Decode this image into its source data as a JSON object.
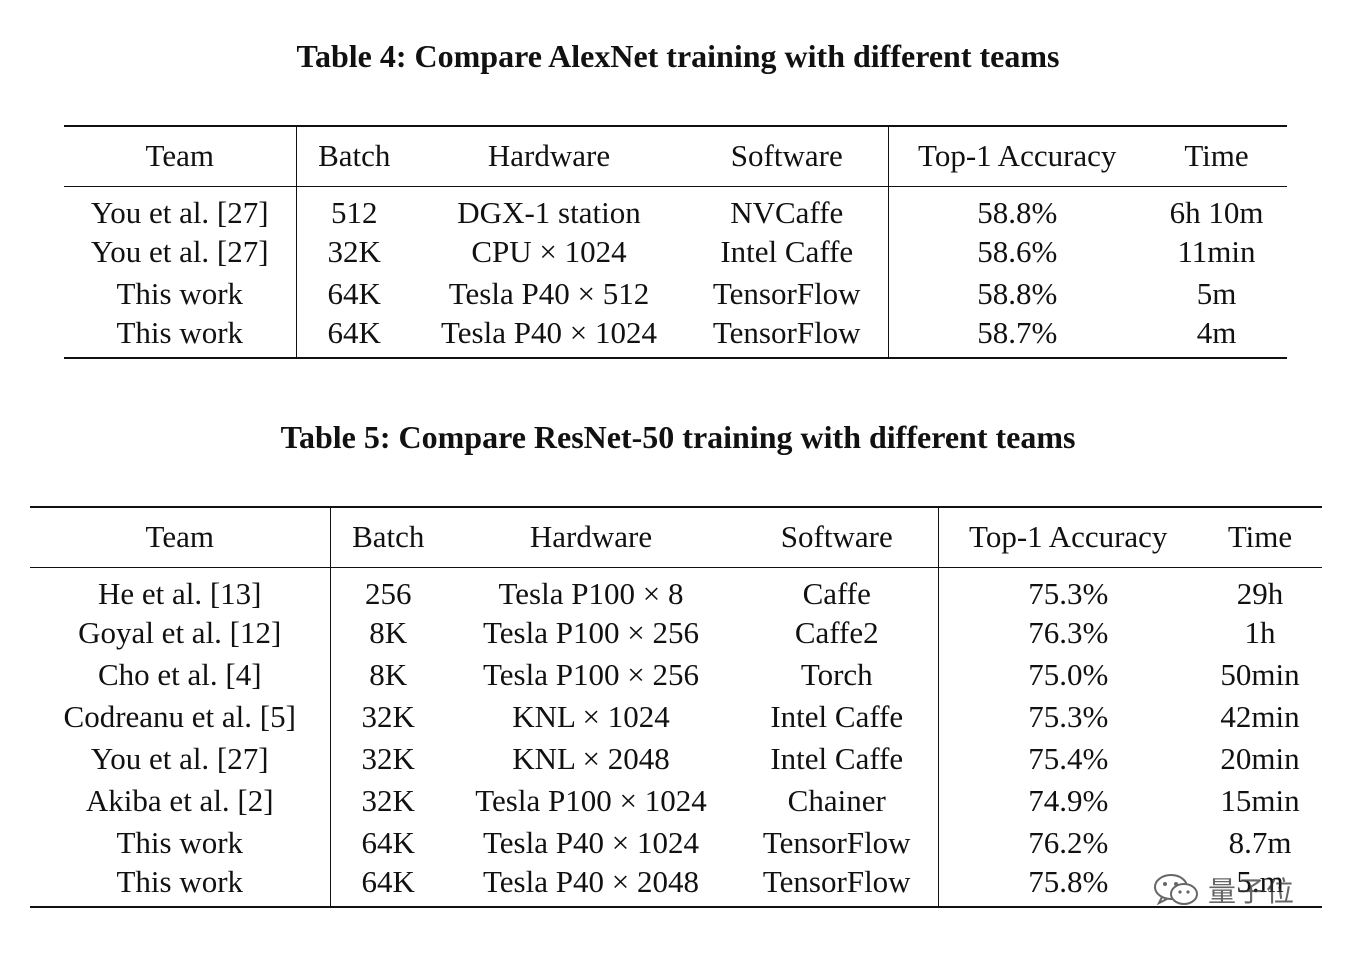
{
  "table4": {
    "caption": "Table 4: Compare AlexNet training with different teams",
    "headers": [
      "Team",
      "Batch",
      "Hardware",
      "Software",
      "Top-1 Accuracy",
      "Time"
    ],
    "rows": [
      {
        "team": "You et al. [27]",
        "batch": "512",
        "hardware": "DGX-1 station",
        "software": "NVCaffe",
        "accuracy": "58.8%",
        "time": "6h 10m",
        "bold": false
      },
      {
        "team": "You et al. [27]",
        "batch": "32K",
        "hardware": "CPU × 1024",
        "software": "Intel Caffe",
        "accuracy": "58.6%",
        "time": "11min",
        "bold": false
      },
      {
        "team": "This work",
        "batch": "64K",
        "hardware": "Tesla P40 × 512",
        "software": "TensorFlow",
        "accuracy": "58.8%",
        "time": "5m",
        "bold": true
      },
      {
        "team": "This work",
        "batch": "64K",
        "hardware": "Tesla P40 × 1024",
        "software": "TensorFlow",
        "accuracy": "58.7%",
        "time": "4m",
        "bold": true
      }
    ]
  },
  "table5": {
    "caption": "Table 5: Compare ResNet-50 training with different teams",
    "headers": [
      "Team",
      "Batch",
      "Hardware",
      "Software",
      "Top-1 Accuracy",
      "Time"
    ],
    "rows": [
      {
        "team": "He et al. [13]",
        "batch": "256",
        "hardware": "Tesla P100 × 8",
        "software": "Caffe",
        "accuracy": "75.3%",
        "time": "29h",
        "bold": false
      },
      {
        "team": "Goyal et al. [12]",
        "batch": "8K",
        "hardware": "Tesla P100 × 256",
        "software": "Caffe2",
        "accuracy": "76.3%",
        "time": "1h",
        "bold": false
      },
      {
        "team": "Cho et al. [4]",
        "batch": "8K",
        "hardware": "Tesla P100 × 256",
        "software": "Torch",
        "accuracy": "75.0%",
        "time": "50min",
        "bold": false
      },
      {
        "team": "Codreanu et al. [5]",
        "batch": "32K",
        "hardware": "KNL × 1024",
        "software": "Intel Caffe",
        "accuracy": "75.3%",
        "time": "42min",
        "bold": false
      },
      {
        "team": "You et al. [27]",
        "batch": "32K",
        "hardware": "KNL × 2048",
        "software": "Intel Caffe",
        "accuracy": "75.4%",
        "time": "20min",
        "bold": false
      },
      {
        "team": "Akiba et al. [2]",
        "batch": "32K",
        "hardware": "Tesla P100 × 1024",
        "software": "Chainer",
        "accuracy": "74.9%",
        "time": "15min",
        "bold": false
      },
      {
        "team": "This work",
        "batch": "64K",
        "hardware": "Tesla P40 × 1024",
        "software": "TensorFlow",
        "accuracy": "76.2%",
        "time": "8.7m",
        "bold": true
      },
      {
        "team": "This work",
        "batch": "64K",
        "hardware": "Tesla P40 × 2048",
        "software": "TensorFlow",
        "accuracy": "75.8%",
        "time": "5.m",
        "bold": true
      }
    ]
  },
  "watermark": {
    "text": "量子位",
    "icon": "wechat-icon"
  }
}
